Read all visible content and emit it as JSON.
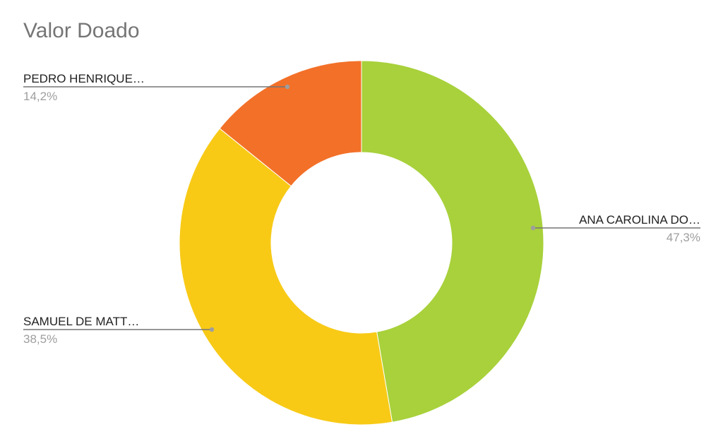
{
  "chart_data": {
    "type": "pie",
    "style": "donut",
    "title": "Valor Doado",
    "slices": [
      {
        "name": "ANA CAROLINA DO…",
        "value": 47.3,
        "percent_label": "47,3%",
        "color": "#a8d13b"
      },
      {
        "name": "SAMUEL DE MATT…",
        "value": 38.5,
        "percent_label": "38,5%",
        "color": "#f8ca16"
      },
      {
        "name": "PEDRO HENRIQUE…",
        "value": 14.2,
        "percent_label": "14,2%",
        "color": "#f37028"
      }
    ],
    "start_angle_deg": 0,
    "direction": "clockwise",
    "legend": "none"
  }
}
